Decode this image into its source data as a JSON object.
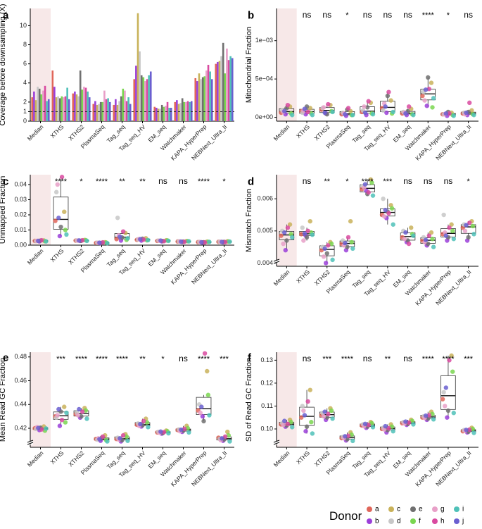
{
  "figure": {
    "donor_legend_title": "Donor",
    "donors": [
      "a",
      "b",
      "c",
      "d",
      "e",
      "f",
      "g",
      "h",
      "i",
      "j"
    ],
    "donor_colors": {
      "a": "#e0665a",
      "b": "#9b3fd9",
      "c": "#c9b25a",
      "d": "#c7c7c7",
      "e": "#707070",
      "f": "#7ad650",
      "g": "#e8a0c8",
      "h": "#d94aa0",
      "i": "#4fc1b8",
      "j": "#6a5fd0"
    },
    "categories": [
      "Median",
      "XTHS",
      "XTHS2",
      "PlasmaSeq",
      "Tag_seq",
      "Tag_seq_HV",
      "EM_seq",
      "Watchmaker",
      "KAPA_HyperPrep",
      "NEBNext_Ultra_II"
    ]
  },
  "chart_data": [
    {
      "panel": "a",
      "type": "bar",
      "ylabel": "Coverage before downsampling (X)",
      "ylim": [
        0,
        11.8
      ],
      "yticks": [
        0,
        1,
        2,
        4,
        6,
        8,
        10
      ],
      "reference_line": 1,
      "categories": [
        "Median",
        "XTHS",
        "XTHS2",
        "PlasmaSeq",
        "Tag_seq",
        "Tag_seq_HV",
        "EM_seq",
        "Watchmaker",
        "KAPA_HyperPrep",
        "NEBNext_Ultra_II"
      ],
      "series": [
        {
          "name": "a",
          "values": [
            2.5,
            5.3,
            2.9,
            1.8,
            1.7,
            4.4,
            1.5,
            2.0,
            4.5,
            6.0
          ]
        },
        {
          "name": "b",
          "values": [
            3.1,
            3.6,
            3.1,
            2.1,
            2.3,
            5.8,
            1.4,
            2.2,
            4.2,
            6.2
          ]
        },
        {
          "name": "c",
          "values": [
            2.2,
            2.5,
            2.8,
            1.7,
            1.7,
            11.3,
            1.3,
            1.8,
            5.0,
            6.3
          ]
        },
        {
          "name": "d",
          "values": [
            3.6,
            2.6,
            2.6,
            1.8,
            2.1,
            7.3,
            1.3,
            1.9,
            4.4,
            6.8
          ]
        },
        {
          "name": "e",
          "values": [
            3.4,
            2.4,
            5.3,
            2.0,
            2.6,
            4.8,
            1.7,
            2.4,
            4.6,
            8.2
          ]
        },
        {
          "name": "f",
          "values": [
            2.8,
            2.6,
            3.3,
            2.0,
            3.4,
            4.6,
            1.5,
            2.0,
            4.7,
            5.0
          ]
        },
        {
          "name": "g",
          "values": [
            3.2,
            2.5,
            3.6,
            3.2,
            3.2,
            4.2,
            1.6,
            2.0,
            5.3,
            7.6
          ]
        },
        {
          "name": "h",
          "values": [
            3.7,
            2.6,
            3.5,
            2.3,
            2.1,
            4.4,
            2.0,
            2.1,
            5.9,
            6.4
          ]
        },
        {
          "name": "i",
          "values": [
            2.1,
            3.5,
            3.1,
            2.4,
            2.5,
            4.8,
            1.4,
            2.0,
            5.2,
            6.8
          ]
        },
        {
          "name": "j",
          "values": [
            2.3,
            2.3,
            2.5,
            2.0,
            1.8,
            5.2,
            1.4,
            2.1,
            4.4,
            6.6
          ]
        }
      ]
    },
    {
      "panel": "b",
      "type": "box",
      "ylabel": "Mitochondrial Fraction",
      "ylim": [
        -5e-05,
        0.00142
      ],
      "yticks": [
        0,
        0.0005,
        0.001
      ],
      "ytick_labels": [
        "0e+00",
        "5e−04",
        "1e−03"
      ],
      "axis_break": false,
      "categories": [
        "Median",
        "XTHS",
        "XTHS2",
        "PlasmaSeq",
        "Tag_seq",
        "Tag_seq_HV",
        "EM_seq",
        "Watchmaker",
        "KAPA_HyperPrep",
        "NEBNext_Ultra_II"
      ],
      "significance": [
        "",
        "ns",
        "ns",
        "*",
        "ns",
        "ns",
        "ns",
        "****",
        "*",
        "ns"
      ],
      "values": [
        [
          6e-05,
          4e-05,
          0.00014,
          9e-05,
          0.00012,
          5e-05,
          7e-05,
          0.00016,
          3e-05,
          8e-05
        ],
        [
          8e-05,
          4e-05,
          0.00012,
          6e-05,
          0.00014,
          5e-05,
          9e-05,
          7e-05,
          3e-05,
          0.00011
        ],
        [
          0.0001,
          5e-05,
          0.00016,
          0.00012,
          4e-05,
          8e-05,
          0.00013,
          0.00017,
          7e-05,
          6e-05
        ],
        [
          4e-05,
          2e-05,
          8e-05,
          6e-05,
          0.0001,
          3e-05,
          5e-05,
          0.00012,
          3e-05,
          4e-05
        ],
        [
          7e-05,
          3e-05,
          0.00019,
          9e-05,
          0.00013,
          5e-05,
          0.00014,
          0.00021,
          4e-05,
          6e-05
        ],
        [
          0.00012,
          6e-05,
          0.00022,
          9e-05,
          0.00028,
          5e-05,
          0.00018,
          0.00033,
          7e-05,
          0.00014
        ],
        [
          5e-05,
          3e-05,
          0.00011,
          7e-05,
          8e-05,
          4e-05,
          6e-05,
          0.00014,
          3e-05,
          5e-05
        ],
        [
          0.00028,
          0.00015,
          0.00045,
          0.00033,
          0.00052,
          0.00013,
          0.00022,
          0.00037,
          0.00025,
          0.00036
        ],
        [
          4e-05,
          2e-05,
          6e-05,
          4e-05,
          7e-05,
          3e-05,
          4e-05,
          5e-05,
          2e-05,
          5e-05
        ],
        [
          5e-05,
          3e-05,
          9e-05,
          6e-05,
          7e-05,
          4e-05,
          4e-05,
          0.00019,
          3e-05,
          6e-05
        ]
      ]
    },
    {
      "panel": "c",
      "type": "box",
      "ylabel": "Unmapped Fraction",
      "ylim": [
        0,
        0.0465
      ],
      "yticks": [
        0,
        0.01,
        0.02,
        0.03,
        0.04
      ],
      "ytick_labels": [
        "0.00",
        "0.01",
        "0.02",
        "0.03",
        "0.04"
      ],
      "axis_break": false,
      "categories": [
        "Median",
        "XTHS",
        "XTHS2",
        "PlasmaSeq",
        "Tag_seq",
        "Tag_seq_HV",
        "EM_seq",
        "Watchmaker",
        "KAPA_HyperPrep",
        "NEBNext_Ultra_II"
      ],
      "significance": [
        "",
        "****",
        "*",
        "****",
        "**",
        "**",
        "ns",
        "ns",
        "****",
        "*"
      ],
      "values": [
        [
          0.0028,
          0.0025,
          0.0031,
          0.0027,
          0.003,
          0.0026,
          0.0029,
          0.0032,
          0.0025,
          0.0028
        ],
        [
          0.016,
          0.006,
          0.022,
          0.035,
          0.012,
          0.01,
          0.04,
          0.045,
          0.007,
          0.018
        ],
        [
          0.003,
          0.0028,
          0.0034,
          0.0031,
          0.0029,
          0.0033,
          0.003,
          0.0032,
          0.0028,
          0.0031
        ],
        [
          0.0015,
          0.0013,
          0.0019,
          0.0016,
          0.0014,
          0.0017,
          0.0015,
          0.0018,
          0.0013,
          0.0016
        ],
        [
          0.004,
          0.003,
          0.008,
          0.018,
          0.005,
          0.0035,
          0.0065,
          0.009,
          0.0045,
          0.0055
        ],
        [
          0.0035,
          0.003,
          0.0045,
          0.0038,
          0.0042,
          0.0032,
          0.004,
          0.0036,
          0.0033,
          0.0039
        ],
        [
          0.0028,
          0.0025,
          0.0032,
          0.003,
          0.0027,
          0.0031,
          0.0029,
          0.0026,
          0.0028,
          0.003
        ],
        [
          0.0024,
          0.0021,
          0.0027,
          0.0025,
          0.0023,
          0.0026,
          0.0024,
          0.0022,
          0.0025,
          0.0023
        ],
        [
          0.002,
          0.0017,
          0.0023,
          0.0021,
          0.0019,
          0.0022,
          0.002,
          0.0018,
          0.0021,
          0.0019
        ],
        [
          0.0022,
          0.0019,
          0.0025,
          0.0023,
          0.0021,
          0.0024,
          0.0022,
          0.002,
          0.0023,
          0.0021
        ]
      ]
    },
    {
      "panel": "d",
      "type": "box",
      "ylabel": "Mismatch Fraction",
      "ylim": [
        0.0039,
        0.00675
      ],
      "yticks": [
        0.004,
        0.005,
        0.006
      ],
      "ytick_labels": [
        "0.004",
        "0.005",
        "0.006"
      ],
      "axis_break": true,
      "categories": [
        "Median",
        "XTHS",
        "XTHS2",
        "PlasmaSeq",
        "Tag_seq",
        "Tag_seq_HV",
        "EM_seq",
        "Watchmaker",
        "KAPA_HyperPrep",
        "NEBNext_Ultra_II"
      ],
      "significance": [
        "",
        "ns",
        "**",
        "*",
        "****",
        "***",
        "ns",
        "ns",
        "ns",
        "*"
      ],
      "values": [
        [
          0.00485,
          0.0044,
          0.0052,
          0.005,
          0.0047,
          0.0049,
          0.0046,
          0.0051,
          0.0048,
          0.00495
        ],
        [
          0.0049,
          0.00485,
          0.0053,
          0.0051,
          0.0048,
          0.00495,
          0.0047,
          0.005,
          0.00488,
          0.00492
        ],
        [
          0.0044,
          0.004,
          0.00465,
          0.0045,
          0.0043,
          0.0046,
          0.0042,
          0.00455,
          0.0041,
          0.00445
        ],
        [
          0.0046,
          0.0044,
          0.0053,
          0.0047,
          0.0045,
          0.00465,
          0.00455,
          0.0048,
          0.00445,
          0.00462
        ],
        [
          0.0063,
          0.00625,
          0.0066,
          0.0064,
          0.00615,
          0.0065,
          0.00635,
          0.0062,
          0.0061,
          0.00645
        ],
        [
          0.0055,
          0.0054,
          0.0058,
          0.006,
          0.0056,
          0.0057,
          0.00545,
          0.00555,
          0.0052,
          0.00565
        ],
        [
          0.0048,
          0.00465,
          0.0051,
          0.005,
          0.0047,
          0.0049,
          0.00475,
          0.0046,
          0.00485,
          0.00495
        ],
        [
          0.0047,
          0.00455,
          0.00495,
          0.0048,
          0.0046,
          0.00475,
          0.00465,
          0.00485,
          0.0045,
          0.00472
        ],
        [
          0.0049,
          0.0047,
          0.0052,
          0.0055,
          0.0048,
          0.005,
          0.00495,
          0.0051,
          0.00475,
          0.00485
        ],
        [
          0.0051,
          0.0047,
          0.0053,
          0.0052,
          0.0048,
          0.00515,
          0.005,
          0.00525,
          0.0049,
          0.00518
        ]
      ]
    },
    {
      "panel": "e",
      "type": "box",
      "ylabel": "Mean Read GC Fraction",
      "ylim": [
        0.404,
        0.484
      ],
      "yticks": [
        0.42,
        0.44,
        0.46,
        0.48
      ],
      "ytick_labels": [
        "0.42",
        "0.44",
        "0.46",
        "0.48"
      ],
      "axis_break": true,
      "categories": [
        "Median",
        "XTHS",
        "XTHS2",
        "PlasmaSeq",
        "Tag_seq",
        "Tag_seq_HV",
        "EM_seq",
        "Watchmaker",
        "KAPA_HyperPrep",
        "NEBNext_Ultra_II"
      ],
      "significance": [
        "",
        "***",
        "****",
        "****",
        "****",
        "**",
        "*",
        "ns",
        "****",
        "***"
      ],
      "values": [
        [
          0.42,
          0.4185,
          0.4215,
          0.4195,
          0.4205,
          0.418,
          0.421,
          0.419,
          0.4198,
          0.4202
        ],
        [
          0.43,
          0.422,
          0.438,
          0.429,
          0.434,
          0.425,
          0.431,
          0.427,
          0.433,
          0.436
        ],
        [
          0.432,
          0.429,
          0.437,
          0.433,
          0.43,
          0.435,
          0.431,
          0.434,
          0.428,
          0.436
        ],
        [
          0.411,
          0.4095,
          0.414,
          0.4105,
          0.412,
          0.41,
          0.4115,
          0.413,
          0.409,
          0.4108
        ],
        [
          0.411,
          0.409,
          0.415,
          0.412,
          0.41,
          0.413,
          0.4105,
          0.414,
          0.4095,
          0.4115
        ],
        [
          0.423,
          0.4215,
          0.428,
          0.424,
          0.4225,
          0.425,
          0.422,
          0.426,
          0.421,
          0.4235
        ],
        [
          0.4165,
          0.4155,
          0.418,
          0.417,
          0.416,
          0.4175,
          0.4162,
          0.4168,
          0.4158,
          0.4172
        ],
        [
          0.4185,
          0.417,
          0.422,
          0.419,
          0.418,
          0.42,
          0.4175,
          0.4195,
          0.4165,
          0.4188
        ],
        [
          0.435,
          0.43,
          0.468,
          0.44,
          0.426,
          0.448,
          0.433,
          0.483,
          0.431,
          0.438
        ],
        [
          0.412,
          0.4095,
          0.417,
          0.411,
          0.4105,
          0.414,
          0.41,
          0.413,
          0.409,
          0.4115
        ]
      ]
    },
    {
      "panel": "f",
      "type": "box",
      "ylabel": "SD of Read GC Fraction",
      "ylim": [
        0.092,
        0.1335
      ],
      "yticks": [
        0.1,
        0.11,
        0.12,
        0.13
      ],
      "ytick_labels": [
        "0.10",
        "0.11",
        "0.12",
        "0.13"
      ],
      "axis_break": true,
      "categories": [
        "Median",
        "XTHS",
        "XTHS2",
        "PlasmaSeq",
        "Tag_seq",
        "Tag_seq_HV",
        "EM_seq",
        "Watchmaker",
        "KAPA_HyperPrep",
        "NEBNext_Ultra_II"
      ],
      "significance": [
        "",
        "ns",
        "***",
        "****",
        "ns",
        "**",
        "ns",
        "****",
        "****",
        "***"
      ],
      "values": [
        [
          0.102,
          0.101,
          0.104,
          0.1025,
          0.1015,
          0.103,
          0.1018,
          0.1022,
          0.1008,
          0.1035
        ],
        [
          0.105,
          0.099,
          0.117,
          0.11,
          0.101,
          0.103,
          0.108,
          0.112,
          0.098,
          0.106
        ],
        [
          0.106,
          0.104,
          0.109,
          0.107,
          0.105,
          0.108,
          0.1055,
          0.1065,
          0.1045,
          0.1075
        ],
        [
          0.096,
          0.095,
          0.0985,
          0.0965,
          0.0955,
          0.0975,
          0.096,
          0.097,
          0.0948,
          0.0968
        ],
        [
          0.1015,
          0.1005,
          0.103,
          0.102,
          0.101,
          0.1025,
          0.1012,
          0.1018,
          0.1008,
          0.1022
        ],
        [
          0.1,
          0.0985,
          0.102,
          0.1005,
          0.0995,
          0.101,
          0.0998,
          0.1003,
          0.099,
          0.1012
        ],
        [
          0.1025,
          0.1018,
          0.104,
          0.103,
          0.1022,
          0.1035,
          0.1024,
          0.1028,
          0.102,
          0.1032
        ],
        [
          0.105,
          0.104,
          0.1075,
          0.1055,
          0.1045,
          0.1065,
          0.1048,
          0.106,
          0.1042,
          0.1058
        ],
        [
          0.113,
          0.105,
          0.132,
          0.116,
          0.108,
          0.125,
          0.11,
          0.13,
          0.107,
          0.118
        ],
        [
          0.099,
          0.0985,
          0.1005,
          0.0995,
          0.0988,
          0.1,
          0.0992,
          0.0997,
          0.0983,
          0.0996
        ]
      ]
    }
  ]
}
